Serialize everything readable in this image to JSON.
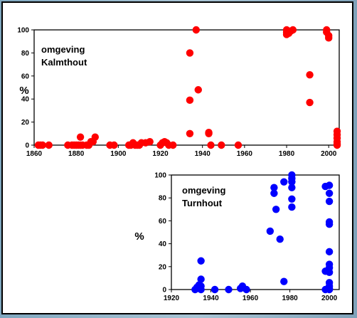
{
  "chart_data": [
    {
      "type": "scatter",
      "title_lines": [
        "omgeving",
        "Kalmthout"
      ],
      "ylabel": "%",
      "xlim": [
        1860,
        2005
      ],
      "ylim": [
        0,
        100
      ],
      "xticks": [
        1860,
        1880,
        1900,
        1920,
        1940,
        1960,
        1980,
        2000
      ],
      "yticks": [
        0,
        20,
        40,
        60,
        80,
        100
      ],
      "color": "#ff0000",
      "points": [
        [
          1862,
          0
        ],
        [
          1863,
          0
        ],
        [
          1864,
          0
        ],
        [
          1867,
          0
        ],
        [
          1876,
          0
        ],
        [
          1878,
          0
        ],
        [
          1879,
          0
        ],
        [
          1880,
          0
        ],
        [
          1881,
          0
        ],
        [
          1882,
          0
        ],
        [
          1883,
          0
        ],
        [
          1882,
          7
        ],
        [
          1885,
          0
        ],
        [
          1886,
          0
        ],
        [
          1887,
          3
        ],
        [
          1888,
          3
        ],
        [
          1889,
          7
        ],
        [
          1896,
          0
        ],
        [
          1898,
          0
        ],
        [
          1905,
          0
        ],
        [
          1906,
          0
        ],
        [
          1907,
          2
        ],
        [
          1908,
          0
        ],
        [
          1909,
          0
        ],
        [
          1910,
          0
        ],
        [
          1911,
          2
        ],
        [
          1913,
          2
        ],
        [
          1915,
          3
        ],
        [
          1920,
          0
        ],
        [
          1921,
          2
        ],
        [
          1922,
          3
        ],
        [
          1923,
          2
        ],
        [
          1924,
          0
        ],
        [
          1926,
          0
        ],
        [
          1934,
          80
        ],
        [
          1934,
          39
        ],
        [
          1934,
          10
        ],
        [
          1937,
          100
        ],
        [
          1938,
          48
        ],
        [
          1943,
          11
        ],
        [
          1943,
          10
        ],
        [
          1944,
          0
        ],
        [
          1949,
          0
        ],
        [
          1957,
          0
        ],
        [
          1980,
          100
        ],
        [
          1980,
          98
        ],
        [
          1980,
          96
        ],
        [
          1981,
          97
        ],
        [
          1982,
          99
        ],
        [
          1983,
          100
        ],
        [
          1991,
          61
        ],
        [
          1991,
          37
        ],
        [
          1999,
          100
        ],
        [
          1999,
          98
        ],
        [
          2000,
          95
        ],
        [
          2000,
          93
        ],
        [
          2004,
          12
        ],
        [
          2004,
          9
        ],
        [
          2004,
          6
        ],
        [
          2004,
          3
        ],
        [
          2004,
          1
        ],
        [
          2004,
          0
        ]
      ]
    },
    {
      "type": "scatter",
      "title_lines": [
        "omgeving",
        "Turnhout"
      ],
      "ylabel": "%",
      "xlim": [
        1920,
        2005
      ],
      "ylim": [
        0,
        100
      ],
      "xticks": [
        1920,
        1940,
        1960,
        1980,
        2000
      ],
      "yticks": [
        0,
        20,
        40,
        60,
        80,
        100
      ],
      "color": "#0000ff",
      "points": [
        [
          1932,
          0
        ],
        [
          1933,
          2
        ],
        [
          1934,
          4
        ],
        [
          1934,
          1
        ],
        [
          1935,
          25
        ],
        [
          1935,
          9
        ],
        [
          1935,
          3
        ],
        [
          1935,
          0
        ],
        [
          1942,
          0
        ],
        [
          1949,
          0
        ],
        [
          1955,
          1
        ],
        [
          1956,
          3
        ],
        [
          1958,
          0
        ],
        [
          1970,
          51
        ],
        [
          1972,
          89
        ],
        [
          1972,
          84
        ],
        [
          1973,
          70
        ],
        [
          1975,
          44
        ],
        [
          1977,
          94
        ],
        [
          1977,
          7
        ],
        [
          1981,
          100
        ],
        [
          1981,
          97
        ],
        [
          1981,
          94
        ],
        [
          1981,
          89
        ],
        [
          1981,
          79
        ],
        [
          1981,
          72
        ],
        [
          1998,
          90
        ],
        [
          1998,
          16
        ],
        [
          1998,
          0
        ],
        [
          2000,
          91
        ],
        [
          2000,
          84
        ],
        [
          2000,
          77
        ],
        [
          2000,
          59
        ],
        [
          2000,
          57
        ],
        [
          2000,
          33
        ],
        [
          2000,
          22
        ],
        [
          2000,
          19
        ],
        [
          2000,
          15
        ],
        [
          2000,
          6
        ],
        [
          2000,
          3
        ],
        [
          2000,
          1
        ],
        [
          2000,
          0
        ]
      ]
    }
  ]
}
